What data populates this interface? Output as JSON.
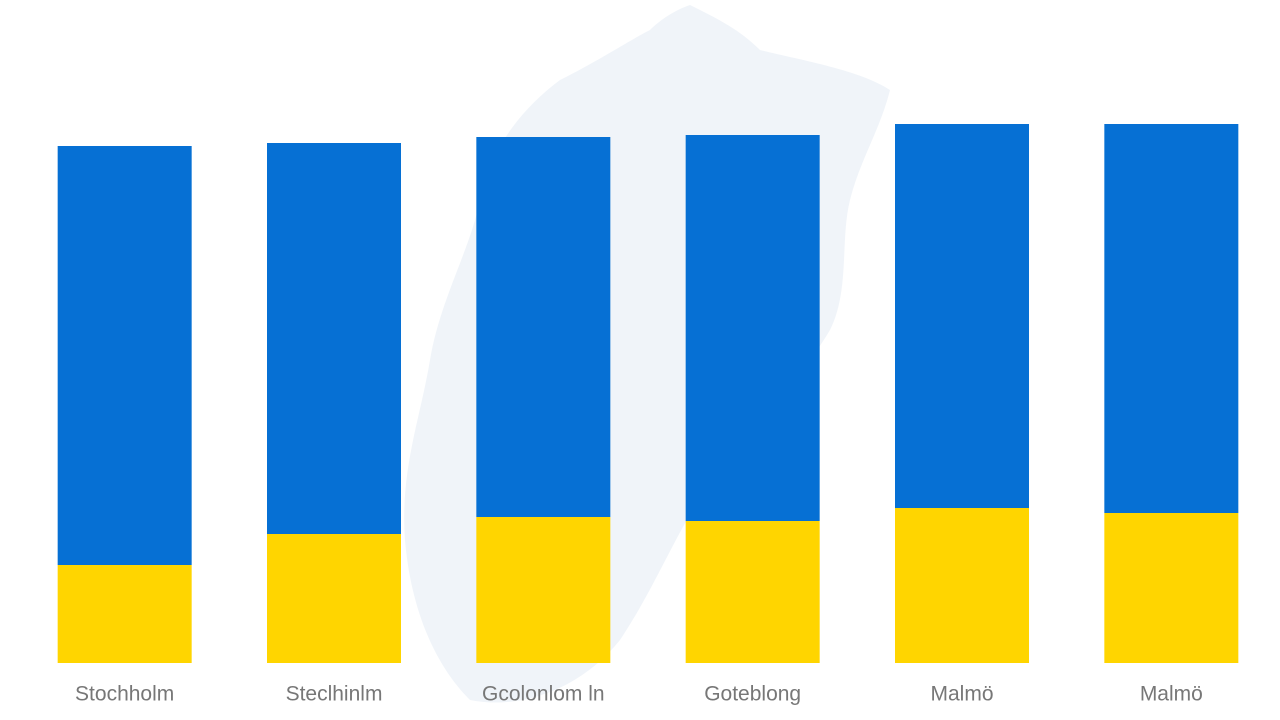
{
  "chart_data": {
    "type": "stacked_bar",
    "categories": [
      "Stochholm",
      "Steclhinlm",
      "Gcolonlom ln",
      "Goteblong",
      "Malmö",
      "Malmö"
    ],
    "series": [
      {
        "color": "#ffd500",
        "values": [
          98,
          129,
          146,
          142,
          155,
          150
        ]
      },
      {
        "color": "#0670d4",
        "values": [
          419,
          391,
          380,
          386,
          384,
          389
        ]
      }
    ],
    "ylim": [
      0,
      550
    ]
  }
}
